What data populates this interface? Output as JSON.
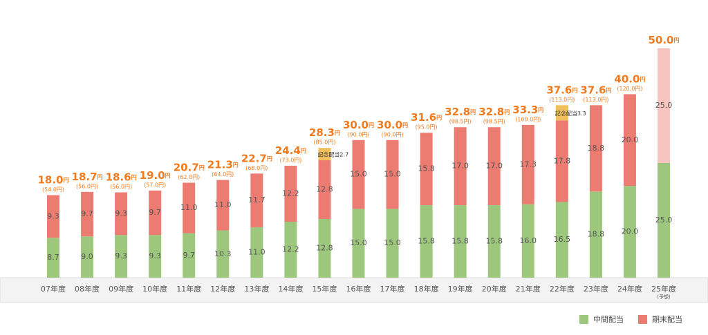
{
  "chart_data": {
    "type": "bar",
    "stacked": true,
    "categories": [
      "07年度",
      "08年度",
      "09年度",
      "10年度",
      "11年度",
      "12年度",
      "13年度",
      "14年度",
      "15年度",
      "16年度",
      "17年度",
      "18年度",
      "19年度",
      "20年度",
      "21年度",
      "22年度",
      "23年度",
      "24年度",
      "25年度"
    ],
    "forecast_note": "(予想)",
    "unit": "円",
    "ylim": [
      0,
      50
    ],
    "series": [
      {
        "name": "中間配当",
        "color": "#9dc77c",
        "values": [
          8.7,
          9.0,
          9.3,
          9.3,
          9.7,
          10.3,
          11.0,
          12.2,
          12.8,
          15.0,
          15.0,
          15.8,
          15.8,
          15.8,
          16.0,
          16.5,
          18.8,
          20.0,
          25.0
        ],
        "value_labels": [
          "8.7",
          "9.0",
          "9.3",
          "9.3",
          "9.7",
          "10.3",
          "11.0",
          "12.2",
          "12.8",
          "15.0",
          "15.0",
          "15.8",
          "15.8",
          "15.8",
          "16.0",
          "16.5",
          "18.8",
          "20.0",
          "25.0"
        ]
      },
      {
        "name": "期末配当",
        "color": "#ec7b71",
        "forecast_color": "#f7c4c0",
        "values": [
          9.3,
          9.7,
          9.3,
          9.7,
          11.0,
          11.0,
          11.7,
          12.2,
          12.8,
          15.0,
          15.0,
          15.8,
          17.0,
          17.0,
          17.3,
          17.8,
          18.8,
          20.0,
          25.0
        ],
        "value_labels": [
          "9.3",
          "9.7",
          "9.3",
          "9.7",
          "11.0",
          "11.0",
          "11.7",
          "12.2",
          "12.8",
          "15.0",
          "15.0",
          "15.8",
          "17.0",
          "17.0",
          "17.3",
          "17.8",
          "18.8",
          "20.0",
          "25.0"
        ]
      }
    ],
    "commemorative": {
      "color": "#f0c05c",
      "values": [
        null,
        null,
        null,
        null,
        null,
        null,
        null,
        null,
        2.7,
        null,
        null,
        null,
        null,
        null,
        null,
        3.3,
        null,
        null,
        null
      ],
      "value_labels": [
        null,
        null,
        null,
        null,
        null,
        null,
        null,
        null,
        "記念配当2.7",
        null,
        null,
        null,
        null,
        null,
        null,
        "記念配当3.3",
        null,
        null,
        null
      ]
    },
    "totals": {
      "color": "#f07a1e",
      "values": [
        18.0,
        18.7,
        18.6,
        19.0,
        20.7,
        21.3,
        22.7,
        24.4,
        28.3,
        30.0,
        30.0,
        31.6,
        32.8,
        32.8,
        33.3,
        37.6,
        37.6,
        40.0,
        50.0
      ],
      "value_labels": [
        "18.0",
        "18.7",
        "18.6",
        "19.0",
        "20.7",
        "21.3",
        "22.7",
        "24.4",
        "28.3",
        "30.0",
        "30.0",
        "31.6",
        "32.8",
        "32.8",
        "33.3",
        "37.6",
        "37.6",
        "40.0",
        "50.0"
      ]
    },
    "pre_split": {
      "values": [
        54.0,
        56.0,
        56.0,
        57.0,
        62.0,
        64.0,
        68.0,
        73.0,
        85.0,
        90.0,
        90.0,
        95.0,
        98.5,
        98.5,
        100.0,
        113.0,
        113.0,
        120.0,
        null
      ],
      "value_labels": [
        "(54.0円)",
        "(56.0円)",
        "(56.0円)",
        "(57.0円)",
        "(62.0円)",
        "(64.0円)",
        "(68.0円)",
        "(73.0円)",
        "(85.0円)",
        "(90.0円)",
        "(90.0円)",
        "(95.0円)",
        "(98.5円)",
        "(98.5円)",
        "(100.0円)",
        "(113.0円)",
        "(113.0円)",
        "(120.0円)",
        null
      ]
    }
  }
}
